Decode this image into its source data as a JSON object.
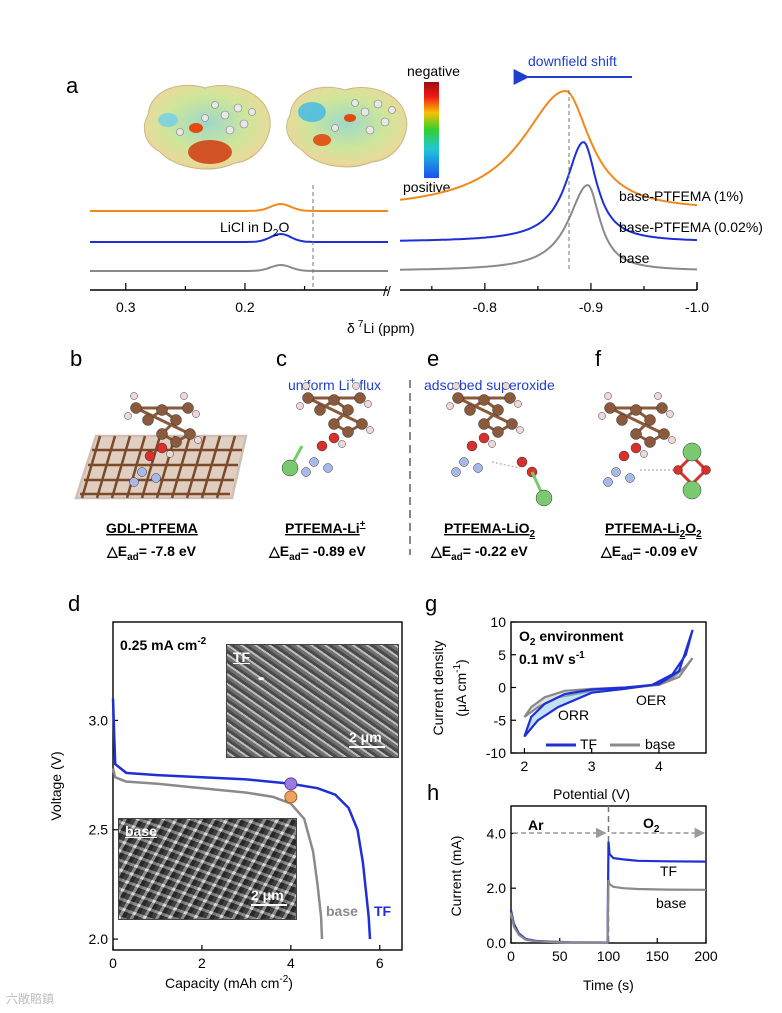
{
  "panels": {
    "a": "a",
    "b": "b",
    "c": "c",
    "d": "d",
    "e": "e",
    "f": "f",
    "g": "g",
    "h": "h"
  },
  "panel_a": {
    "scale_top": "negative",
    "scale_bottom": "positive",
    "arrow_label": "downfield shift",
    "licl_label": "LiCl in D",
    "licl_sub": "2",
    "licl_suffix": "O",
    "xlabel_prefix": "δ",
    "xlabel_sup": "7",
    "xlabel_suffix": "Li (ppm)"
  },
  "panel_bcef": {
    "b_title": "GDL-PTFEMA",
    "b_energy": "△E",
    "b_energy_sub": "ad",
    "b_energy_val": "= -7.8 eV",
    "c_header": "uniform Li",
    "c_header_sup": "+",
    "c_header_suffix": " flux",
    "c_title": "PTFEMA-Li",
    "c_title_sup": "+",
    "c_energy_val": "= -0.89 eV",
    "e_header": "adsorbed superoxide",
    "e_title": "PTFEMA-LiO",
    "e_title_sub": "2",
    "e_energy_val": "= -0.22 eV",
    "f_title": "PTFEMA-Li",
    "f_title_sub1": "2",
    "f_title_mid": "O",
    "f_title_sub2": "2",
    "f_energy_val": "= -0.09 eV"
  },
  "panel_d_text": {
    "rate": "0.25 mA cm",
    "rate_sup": "-2",
    "inset_tf": "TF",
    "inset_base": "base",
    "scale": "2 μm",
    "ylabel": "Voltage (V)",
    "xlabel": "Capacity (mAh cm",
    "xlabel_sup": "-2",
    "xlabel_suffix": ")"
  },
  "panel_g_text": {
    "env": "O",
    "env_sub": "2",
    "env_suffix": " environment",
    "scan": "0.1 mV s",
    "scan_sup": "-1",
    "orr": "ORR",
    "oer": "OER",
    "ylabel1": "Current density",
    "ylabel2": "(μA cm",
    "ylabel2_sup": "-1",
    "ylabel2_suffix": ")",
    "xlabel": "Potential (V)"
  },
  "panel_h_text": {
    "ar": "Ar",
    "o2": "O",
    "o2_sub": "2",
    "ylabel": "Current (mA)",
    "xlabel": "Time (s)"
  },
  "watermark": "六敞賠鎮",
  "colors": {
    "orange": "#f08a1c",
    "blue": "#1f2fd6",
    "gray": "#8a8a8a",
    "label_blue": "#1f3fd1"
  },
  "chart_data": [
    {
      "type": "line",
      "panel": "a",
      "xlabel": "δ 7Li (ppm)",
      "x_ticks": [
        "0.3",
        "0.2",
        "-0.8",
        "-0.9",
        "-1.0"
      ],
      "axis_break": true,
      "xlim_left": [
        0.33,
        0.08
      ],
      "xlim_right": [
        -0.72,
        -1.0
      ],
      "series": [
        {
          "name": "base-PTFEMA (1%)",
          "color": "#f08a1c",
          "peak_left": 0.17,
          "peak_right": -0.876
        },
        {
          "name": "base-PTFEMA (0.02%)",
          "color": "#1f2fd6",
          "peak_left": 0.17,
          "peak_right": -0.893
        },
        {
          "name": "base",
          "color": "#8a8a8a",
          "peak_left": 0.17,
          "peak_right": -0.897
        }
      ]
    },
    {
      "type": "line",
      "panel": "d",
      "xlabel": "Capacity (mAh cm-2)",
      "ylabel": "Voltage (V)",
      "xlim": [
        0,
        6.5
      ],
      "ylim": [
        1.95,
        3.45
      ],
      "x_ticks": [
        "0",
        "2",
        "4",
        "6"
      ],
      "y_ticks": [
        "2.0",
        "2.5",
        "3.0"
      ],
      "series": [
        {
          "name": "TF",
          "color": "#1f2fd6",
          "x": [
            0,
            0.05,
            0.3,
            1,
            2,
            3,
            4,
            4.6,
            5.0,
            5.3,
            5.5,
            5.62,
            5.7,
            5.75,
            5.78
          ],
          "y": [
            3.1,
            2.8,
            2.76,
            2.75,
            2.74,
            2.73,
            2.71,
            2.69,
            2.66,
            2.6,
            2.5,
            2.35,
            2.2,
            2.1,
            2.0
          ],
          "marker": {
            "x": 4.0,
            "y": 2.71
          }
        },
        {
          "name": "base",
          "color": "#8a8a8a",
          "x": [
            0,
            0.05,
            0.3,
            1,
            2,
            3,
            3.6,
            4,
            4.3,
            4.5,
            4.6,
            4.68,
            4.7
          ],
          "y": [
            2.78,
            2.74,
            2.72,
            2.71,
            2.69,
            2.67,
            2.65,
            2.62,
            2.55,
            2.4,
            2.25,
            2.1,
            2.0
          ],
          "marker": {
            "x": 4.0,
            "y": 2.65
          }
        }
      ]
    },
    {
      "type": "line",
      "panel": "g",
      "xlabel": "Potential (V)",
      "ylabel": "Current density (μA cm-1)",
      "xlim": [
        1.8,
        4.7
      ],
      "ylim": [
        -10,
        10
      ],
      "x_ticks": [
        "2",
        "3",
        "4"
      ],
      "y_ticks": [
        "-10",
        "-5",
        "0",
        "5",
        "10"
      ],
      "series": [
        {
          "name": "TF",
          "color": "#1f2fd6",
          "forward_x": [
            2.0,
            2.2,
            2.5,
            3.0,
            3.5,
            3.9,
            4.2,
            4.4,
            4.5
          ],
          "forward_y": [
            -7.5,
            -5,
            -3,
            -0.8,
            -0.2,
            0.4,
            2,
            5,
            8.8
          ],
          "reverse_x": [
            4.5,
            4.3,
            4.0,
            3.5,
            3.0,
            2.6,
            2.3,
            2.1,
            2.0
          ],
          "reverse_y": [
            8.8,
            2.5,
            0.5,
            0,
            -0.3,
            -1,
            -2.5,
            -4.5,
            -7.5
          ]
        },
        {
          "name": "base",
          "color": "#8a8a8a",
          "forward_x": [
            2.0,
            2.2,
            2.5,
            3.0,
            3.5,
            3.9,
            4.2,
            4.4,
            4.5
          ],
          "forward_y": [
            -4.5,
            -3,
            -1.5,
            -0.5,
            -0.1,
            0.3,
            1.5,
            3.2,
            4.5
          ],
          "reverse_x": [
            4.5,
            4.3,
            4.0,
            3.5,
            3.0,
            2.6,
            2.3,
            2.1,
            2.0
          ],
          "reverse_y": [
            4.5,
            1.6,
            0.4,
            0,
            -0.2,
            -0.5,
            -1.5,
            -3,
            -4.5
          ]
        }
      ]
    },
    {
      "type": "line",
      "panel": "h",
      "xlabel": "Time (s)",
      "ylabel": "Current (mA)",
      "xlim": [
        0,
        200
      ],
      "ylim": [
        0,
        5
      ],
      "x_ticks": [
        "0",
        "50",
        "100",
        "150",
        "200"
      ],
      "y_ticks": [
        "0.0",
        "2.0",
        "4.0"
      ],
      "phases": [
        {
          "label": "Ar",
          "from": 0,
          "to": 100
        },
        {
          "label": "O2",
          "from": 100,
          "to": 200
        }
      ],
      "series": [
        {
          "name": "TF",
          "color": "#1f2fd6",
          "x": [
            0,
            3,
            8,
            15,
            25,
            40,
            60,
            99,
            100,
            101,
            105,
            115,
            130,
            160,
            200
          ],
          "y": [
            1.2,
            0.7,
            0.35,
            0.15,
            0.08,
            0.05,
            0.03,
            0.02,
            3.7,
            3.25,
            3.1,
            3.05,
            3.0,
            2.98,
            2.97
          ]
        },
        {
          "name": "base",
          "color": "#8a8a8a",
          "x": [
            0,
            3,
            8,
            15,
            25,
            40,
            60,
            99,
            100,
            101,
            105,
            115,
            130,
            160,
            200
          ],
          "y": [
            1.1,
            0.6,
            0.3,
            0.12,
            0.06,
            0.04,
            0.02,
            0.01,
            2.3,
            2.15,
            2.05,
            2.0,
            1.97,
            1.95,
            1.94
          ]
        }
      ]
    }
  ]
}
